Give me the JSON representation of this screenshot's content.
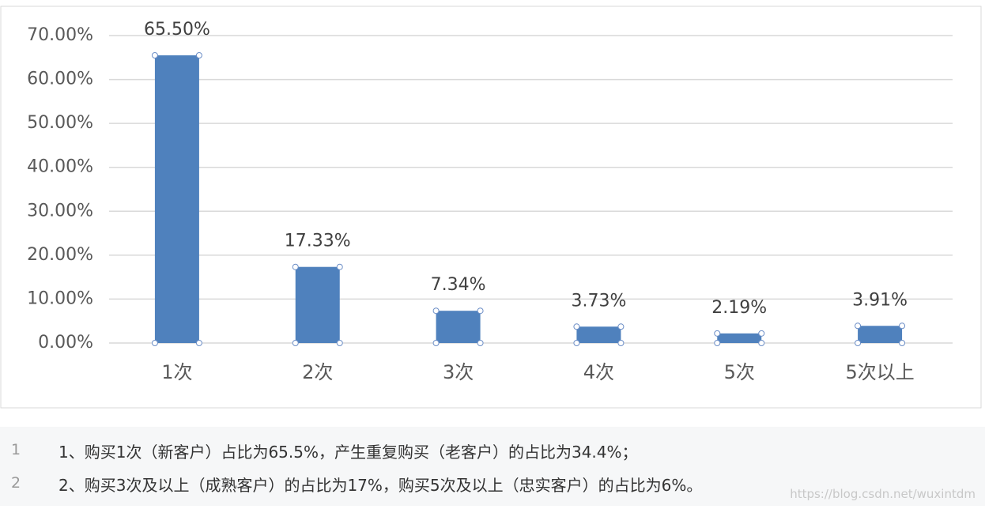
{
  "chart_data": {
    "type": "bar",
    "categories": [
      "1次",
      "2次",
      "3次",
      "4次",
      "5次",
      "5次以上"
    ],
    "values": [
      65.5,
      17.33,
      7.34,
      3.73,
      2.19,
      3.91
    ],
    "value_labels": [
      "65.50%",
      "17.33%",
      "7.34%",
      "3.73%",
      "2.19%",
      "3.91%"
    ],
    "color": "#4f81bd",
    "ylim": [
      0,
      70
    ],
    "yticks": [
      {
        "value": 0,
        "label": "0.00%"
      },
      {
        "value": 10,
        "label": "10.00%"
      },
      {
        "value": 20,
        "label": "20.00%"
      },
      {
        "value": 30,
        "label": "30.00%"
      },
      {
        "value": 40,
        "label": "40.00%"
      },
      {
        "value": 50,
        "label": "50.00%"
      },
      {
        "value": 60,
        "label": "60.00%"
      },
      {
        "value": 70,
        "label": "70.00%"
      }
    ],
    "grid": true
  },
  "code": {
    "lines": [
      {
        "number": 1,
        "text": "1、购买1次（新客户）占比为65.5%，产生重复购买（老客户）的占比为34.4%；"
      },
      {
        "number": 2,
        "text": "2、购买3次及以上（成熟客户）的占比为17%，购买5次及以上（忠实客户）的占比为6%。"
      }
    ]
  },
  "watermark": "https://blog.csdn.net/wuxintdm"
}
